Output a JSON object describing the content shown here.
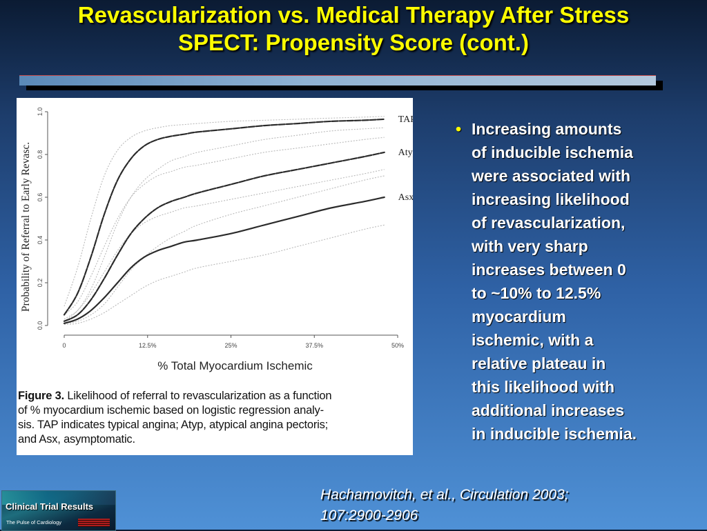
{
  "slide": {
    "title_line1": "Revascularization vs. Medical Therapy After Stress",
    "title_line2": "SPECT: Propensity Score (cont.)",
    "title_color": "#ffff00",
    "bullet": {
      "marker": "•",
      "lines": [
        "Increasing amounts",
        "of inducible ischemia",
        "were associated with",
        "increasing likelihood",
        "of revascularization,",
        "with very sharp",
        "increases between 0",
        "to ~10% to 12.5%",
        "myocardium",
        "ischemic, with a",
        "relative plateau in",
        "this likelihood with",
        "additional increases",
        "in inducible ischemia."
      ]
    },
    "citation": {
      "line1": "Hachamovitch, et al., Circulation 2003;",
      "line2": "107:2900-2906"
    },
    "logo": {
      "title": "Clinical Trial Results",
      "subtitle": "The Pulse of Cardiology"
    }
  },
  "figure": {
    "caption_label": "Figure 3.",
    "caption_lines": [
      " Likelihood of referral to revascularization as a function",
      "of % myocardium ischemic based on logistic regression analy-",
      "sis. TAP indicates typical angina; Atyp, atypical angina pectoris;",
      "and Asx, asymptomatic."
    ]
  },
  "chart_data": {
    "type": "line",
    "xlabel": "% Total Myocardium Ischemic",
    "ylabel": "Probability of Referral to Early Revasc.",
    "x_ticks": [
      "0",
      "12.5%",
      "25%",
      "37.5%",
      "50%"
    ],
    "y_ticks": [
      "0.0",
      "0.2",
      "0.4",
      "0.6",
      "0.8",
      "1.0"
    ],
    "xlim": [
      0,
      50
    ],
    "ylim": [
      0,
      1
    ],
    "series": [
      {
        "name": "TAP",
        "x": [
          0,
          2,
          4,
          6,
          8,
          10,
          12,
          14,
          16,
          18,
          20,
          25,
          30,
          35,
          40,
          45,
          48
        ],
        "y": [
          0.05,
          0.15,
          0.32,
          0.52,
          0.68,
          0.78,
          0.84,
          0.87,
          0.885,
          0.895,
          0.905,
          0.92,
          0.935,
          0.945,
          0.955,
          0.96,
          0.965
        ],
        "ci_upper": [
          0.09,
          0.27,
          0.5,
          0.7,
          0.82,
          0.88,
          0.91,
          0.925,
          0.935,
          0.94,
          0.945,
          0.955,
          0.96,
          0.965,
          0.97,
          0.975,
          0.978
        ],
        "ci_lower": [
          0.02,
          0.07,
          0.17,
          0.32,
          0.48,
          0.6,
          0.68,
          0.73,
          0.77,
          0.79,
          0.81,
          0.84,
          0.87,
          0.89,
          0.91,
          0.92,
          0.925
        ],
        "style": "thick-dash"
      },
      {
        "name": "Atyp",
        "x": [
          0,
          2,
          4,
          6,
          8,
          10,
          12,
          14,
          16,
          18,
          20,
          25,
          30,
          35,
          40,
          45,
          48
        ],
        "y": [
          0.02,
          0.05,
          0.12,
          0.22,
          0.33,
          0.43,
          0.5,
          0.55,
          0.58,
          0.6,
          0.62,
          0.66,
          0.7,
          0.73,
          0.76,
          0.79,
          0.81
        ],
        "ci_upper": [
          0.05,
          0.11,
          0.23,
          0.37,
          0.5,
          0.6,
          0.66,
          0.7,
          0.72,
          0.74,
          0.75,
          0.78,
          0.81,
          0.83,
          0.85,
          0.87,
          0.88
        ],
        "ci_lower": [
          0.01,
          0.02,
          0.05,
          0.1,
          0.18,
          0.26,
          0.32,
          0.37,
          0.41,
          0.44,
          0.47,
          0.52,
          0.56,
          0.6,
          0.64,
          0.68,
          0.7
        ],
        "style": "thick-dash"
      },
      {
        "name": "Asx",
        "x": [
          0,
          2,
          4,
          6,
          8,
          10,
          12,
          14,
          16,
          18,
          20,
          25,
          30,
          35,
          40,
          45,
          48
        ],
        "y": [
          0.01,
          0.03,
          0.07,
          0.13,
          0.2,
          0.27,
          0.32,
          0.35,
          0.37,
          0.39,
          0.4,
          0.43,
          0.47,
          0.51,
          0.55,
          0.58,
          0.6
        ],
        "ci_upper": [
          0.03,
          0.07,
          0.15,
          0.25,
          0.35,
          0.43,
          0.48,
          0.51,
          0.53,
          0.55,
          0.56,
          0.59,
          0.62,
          0.65,
          0.68,
          0.71,
          0.73
        ],
        "ci_lower": [
          0.005,
          0.01,
          0.03,
          0.06,
          0.1,
          0.14,
          0.18,
          0.21,
          0.23,
          0.25,
          0.27,
          0.3,
          0.33,
          0.37,
          0.41,
          0.45,
          0.47
        ],
        "style": "solid"
      }
    ],
    "legend": "end-of-line labels, right",
    "grid": false
  }
}
